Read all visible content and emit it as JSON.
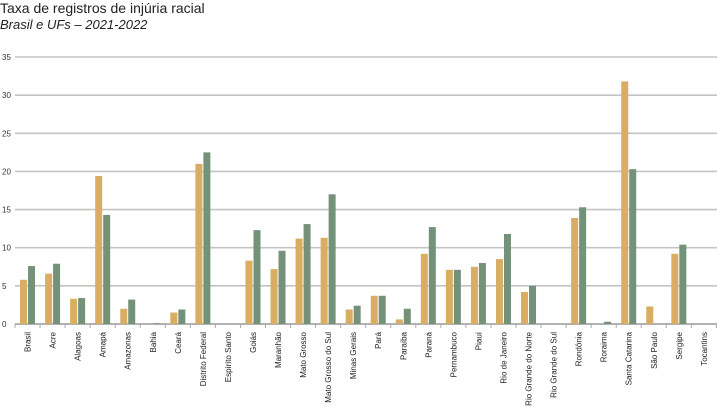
{
  "chart_data": {
    "type": "bar",
    "title": "Taxa de registros de injúria racial",
    "subtitle": "Brasil e UFs – 2021-2022",
    "xlabel": "",
    "ylabel": "",
    "ylim": [
      0,
      35
    ],
    "yticks": [
      0,
      5,
      10,
      15,
      20,
      25,
      30,
      35
    ],
    "grid": true,
    "categories": [
      "Brasil",
      "Acre",
      "Alagoas",
      "Amapá",
      "Amazonas",
      "Bahia",
      "Ceará",
      "Distrito Federal",
      "Espírito Santo",
      "Goiás",
      "Maranhão",
      "Mato Grosso",
      "Mato Grosso do Sul",
      "Minas Gerais",
      "Pará",
      "Paraíba",
      "Paraná",
      "Pernambuco",
      "Piauí",
      "Rio de Janeiro",
      "Rio Grande do Norte",
      "Rio Grande do Sul",
      "Rondônia",
      "Roraima",
      "Santa Catarina",
      "São Paulo",
      "Sergipe",
      "Tocantins"
    ],
    "series": [
      {
        "color": "#d9ae62",
        "values": [
          5.8,
          6.6,
          3.3,
          19.4,
          2.0,
          0,
          1.5,
          21.0,
          0,
          8.3,
          7.2,
          11.2,
          11.3,
          1.9,
          3.7,
          0.6,
          9.2,
          7.1,
          7.5,
          8.5,
          4.2,
          0,
          13.9,
          0,
          31.8,
          2.3,
          9.2,
          0
        ]
      },
      {
        "color": "#74927a",
        "values": [
          7.6,
          7.9,
          3.4,
          14.3,
          3.2,
          0.1,
          1.9,
          22.5,
          0,
          12.3,
          9.6,
          13.1,
          17.0,
          2.4,
          3.7,
          2.0,
          12.7,
          7.1,
          8.0,
          11.8,
          5.0,
          0,
          15.3,
          0.3,
          20.3,
          0,
          10.4,
          0
        ]
      }
    ]
  }
}
